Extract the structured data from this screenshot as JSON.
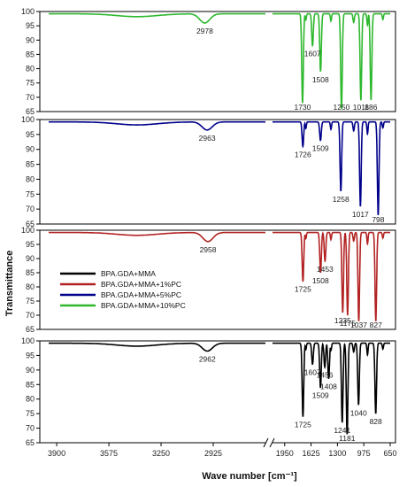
{
  "chart_data": {
    "type": "line",
    "xlabel": "Wave number [cm⁻¹]",
    "ylabel": "Transmittance",
    "x_ticks": [
      "3900",
      "3575",
      "3250",
      "2925",
      "1950",
      "1625",
      "1300",
      "975",
      "650"
    ],
    "x_axis": {
      "reversed": true,
      "broken": true,
      "break_between": [
        2600,
        2100
      ]
    },
    "grid": false,
    "legend_placement": "left, inside third panel",
    "legend": [
      {
        "label": "BPA.GDA+MMA",
        "color": "#000000"
      },
      {
        "label": "BPA.GDA+MMA+1%PC",
        "color": "#b22222"
      },
      {
        "label": "BPA.GDA+MMA+5%PC",
        "color": "#00008b"
      },
      {
        "label": "BPA.GDA+MMA+10%PC",
        "color": "#2eb82e"
      }
    ],
    "panels": [
      {
        "series": "BPA.GDA+MMA+10%PC",
        "color": "#2eb82e",
        "ylim": [
          65,
          100
        ],
        "yticks": [
          "65",
          "70",
          "75",
          "80",
          "85",
          "90",
          "95",
          "100"
        ],
        "peaks": [
          {
            "label": "2978",
            "x": 2978,
            "y": 96
          },
          {
            "label": "1730",
            "x": 1730,
            "y": 68
          },
          {
            "label": "1607",
            "x": 1607,
            "y": 88
          },
          {
            "label": "1508",
            "x": 1508,
            "y": 79
          },
          {
            "label": "1250",
            "x": 1250,
            "y": 66
          },
          {
            "label": "1011",
            "x": 1011,
            "y": 69
          },
          {
            "label": "886",
            "x": 886,
            "y": 69
          }
        ]
      },
      {
        "series": "BPA.GDA+MMA+5%PC",
        "color": "#00008b",
        "ylim": [
          65,
          100
        ],
        "yticks": [
          "65",
          "70",
          "75",
          "80",
          "85",
          "90",
          "95",
          "100"
        ],
        "peaks": [
          {
            "label": "2963",
            "x": 2963,
            "y": 96.5
          },
          {
            "label": "1726",
            "x": 1726,
            "y": 91
          },
          {
            "label": "1509",
            "x": 1509,
            "y": 93
          },
          {
            "label": "1258",
            "x": 1258,
            "y": 76
          },
          {
            "label": "1017",
            "x": 1017,
            "y": 71
          },
          {
            "label": "798",
            "x": 798,
            "y": 68
          }
        ]
      },
      {
        "series": "BPA.GDA+MMA+1%PC",
        "color": "#b22222",
        "ylim": [
          65,
          100
        ],
        "yticks": [
          "65",
          "70",
          "75",
          "80",
          "85",
          "90",
          "95",
          "100"
        ],
        "peaks": [
          {
            "label": "2958",
            "x": 2958,
            "y": 96
          },
          {
            "label": "1725",
            "x": 1725,
            "y": 82
          },
          {
            "label": "1508",
            "x": 1508,
            "y": 85
          },
          {
            "label": "1453",
            "x": 1453,
            "y": 89
          },
          {
            "label": "1235",
            "x": 1235,
            "y": 71
          },
          {
            "label": "1175",
            "x": 1175,
            "y": 70
          },
          {
            "label": "1037",
            "x": 1037,
            "y": 68
          },
          {
            "label": "827",
            "x": 827,
            "y": 68
          }
        ]
      },
      {
        "series": "BPA.GDA+MMA",
        "color": "#000000",
        "ylim": [
          65,
          100
        ],
        "yticks": [
          "65",
          "70",
          "75",
          "80",
          "85",
          "90",
          "95",
          "100"
        ],
        "peaks": [
          {
            "label": "2962",
            "x": 2962,
            "y": 96.5
          },
          {
            "label": "1725",
            "x": 1725,
            "y": 74
          },
          {
            "label": "1607",
            "x": 1607,
            "y": 92
          },
          {
            "label": "1509",
            "x": 1509,
            "y": 84
          },
          {
            "label": "1456",
            "x": 1456,
            "y": 91
          },
          {
            "label": "1408",
            "x": 1408,
            "y": 87
          },
          {
            "label": "1241",
            "x": 1241,
            "y": 72
          },
          {
            "label": "1181",
            "x": 1181,
            "y": 68
          },
          {
            "label": "1040",
            "x": 1040,
            "y": 78
          },
          {
            "label": "828",
            "x": 828,
            "y": 75
          }
        ]
      }
    ]
  }
}
